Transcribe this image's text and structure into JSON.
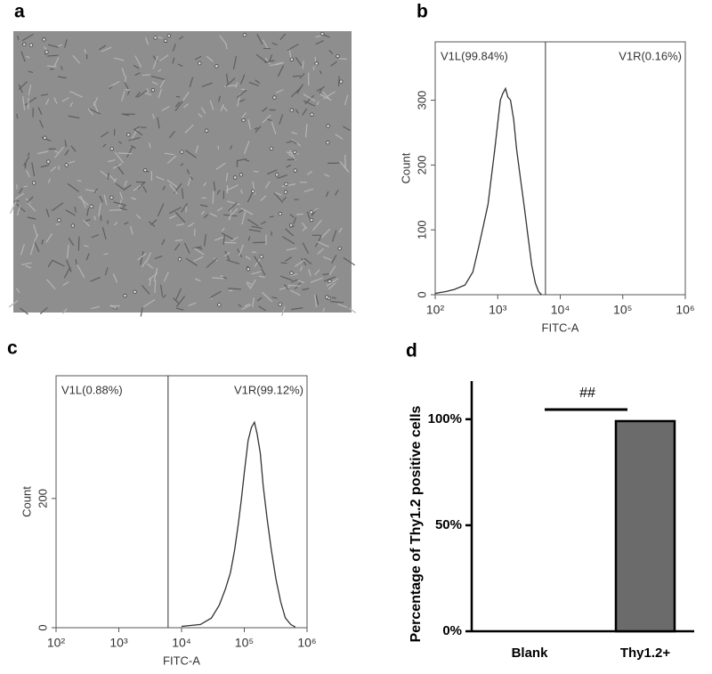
{
  "panel_labels": [
    "a",
    "b",
    "c",
    "d"
  ],
  "chart_data": [
    {
      "type": "line",
      "log_x": true,
      "color": "#333333",
      "xlabel": "FITC-A",
      "ylabel": "Count",
      "annotations": [
        "V1L(99.84%)",
        "V1R(0.16%)"
      ],
      "gate_x": 5800,
      "x": [
        100,
        150,
        200,
        300,
        400,
        500,
        600,
        700,
        800,
        900,
        1000,
        1100,
        1200,
        1330,
        1450,
        1600,
        1800,
        2000,
        2300,
        2700,
        3000,
        3500,
        4000,
        4500,
        5000
      ],
      "values": [
        2,
        5,
        8,
        15,
        35,
        75,
        110,
        140,
        185,
        225,
        265,
        300,
        310,
        318,
        305,
        300,
        270,
        225,
        180,
        130,
        95,
        45,
        18,
        5,
        0
      ],
      "xlim": [
        100,
        1000000
      ],
      "xticks": [
        {
          "value": 100,
          "label": "10²"
        },
        {
          "value": 1000,
          "label": "10³"
        },
        {
          "value": 10000,
          "label": "10⁴"
        },
        {
          "value": 100000,
          "label": "10⁵"
        },
        {
          "value": 1000000,
          "label": "10⁶"
        }
      ],
      "ylim": [
        0,
        390
      ],
      "yticks": [
        0,
        100,
        200,
        300
      ]
    },
    {
      "type": "line",
      "log_x": true,
      "color": "#333333",
      "xlabel": "FITC-A",
      "ylabel": "Count",
      "annotations": [
        "V1L(0.88%)",
        "V1R(99.12%)"
      ],
      "gate_x": 6100,
      "x": [
        10000,
        20000,
        30000,
        40000,
        50000,
        60000,
        70000,
        80000,
        90000,
        100000,
        115000,
        130000,
        145000,
        160000,
        180000,
        200000,
        230000,
        270000,
        320000,
        380000,
        450000,
        550000,
        650000
      ],
      "values": [
        2,
        5,
        15,
        35,
        60,
        85,
        120,
        160,
        200,
        240,
        290,
        310,
        318,
        300,
        270,
        220,
        170,
        120,
        75,
        40,
        15,
        5,
        1
      ],
      "xlim": [
        100,
        1000000
      ],
      "xticks": [
        {
          "value": 100,
          "label": "10²"
        },
        {
          "value": 1000,
          "label": "10³"
        },
        {
          "value": 10000,
          "label": "10⁴"
        },
        {
          "value": 100000,
          "label": "10⁵"
        },
        {
          "value": 1000000,
          "label": "10⁶"
        }
      ],
      "ylim": [
        0,
        390
      ],
      "yticks": [
        0,
        200
      ]
    },
    {
      "type": "bar",
      "color": "#6b6b6b",
      "ylabel": "Percentage of Thy1.2 positive cells",
      "annotations": [
        "##"
      ],
      "categories": [
        "Blank",
        "Thy1.2+"
      ],
      "values": [
        0,
        99.12
      ],
      "ylim": [
        0,
        118
      ],
      "yticks": [
        {
          "value": 0,
          "label": "0%"
        },
        {
          "value": 50,
          "label": "50%"
        },
        {
          "value": 100,
          "label": "100%"
        }
      ]
    }
  ]
}
